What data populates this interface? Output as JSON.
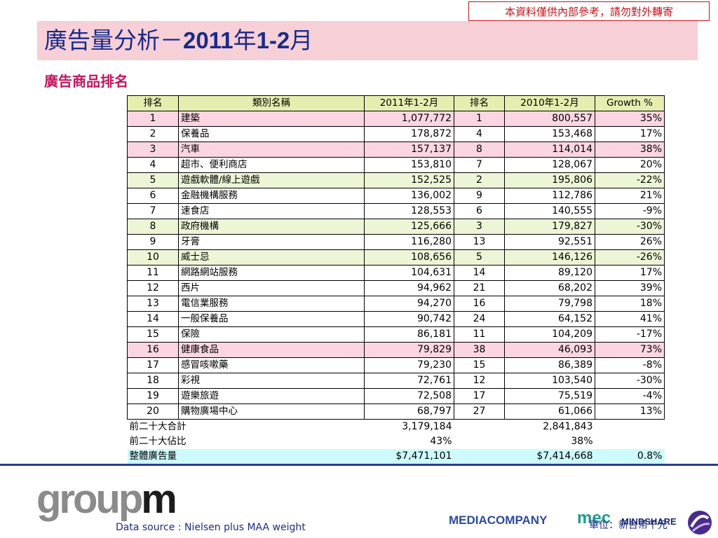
{
  "notice": "本資料僅供內部參考，請勿對外轉寄",
  "title": {
    "prefix": "廣告量分析－",
    "year": "2011",
    "nian": "年",
    "range": "1-2",
    "yue": "月"
  },
  "subtitle": "廣告商品排名",
  "table": {
    "headers": [
      "排名",
      "類別名稱",
      "2011年1-2月",
      "排名",
      "2010年1-2月",
      "Growth %"
    ],
    "rows": [
      {
        "rank": "1",
        "name": "建築",
        "v2011": "1,077,772",
        "rank2010": "1",
        "v2010": "800,557",
        "growth": "35%",
        "hl": "pink"
      },
      {
        "rank": "2",
        "name": "保養品",
        "v2011": "178,872",
        "rank2010": "4",
        "v2010": "153,468",
        "growth": "17%",
        "hl": "white"
      },
      {
        "rank": "3",
        "name": "汽車",
        "v2011": "157,137",
        "rank2010": "8",
        "v2010": "114,014",
        "growth": "38%",
        "hl": "pink"
      },
      {
        "rank": "4",
        "name": "超市、便利商店",
        "v2011": "153,810",
        "rank2010": "7",
        "v2010": "128,067",
        "growth": "20%",
        "hl": "white"
      },
      {
        "rank": "5",
        "name": "遊戲軟體/線上遊戲",
        "v2011": "152,525",
        "rank2010": "2",
        "v2010": "195,806",
        "growth": "-22%",
        "hl": "green"
      },
      {
        "rank": "6",
        "name": "金融機構服務",
        "v2011": "136,002",
        "rank2010": "9",
        "v2010": "112,786",
        "growth": "21%",
        "hl": "white"
      },
      {
        "rank": "7",
        "name": "速食店",
        "v2011": "128,553",
        "rank2010": "6",
        "v2010": "140,555",
        "growth": "-9%",
        "hl": "white"
      },
      {
        "rank": "8",
        "name": "政府機構",
        "v2011": "125,666",
        "rank2010": "3",
        "v2010": "179,827",
        "growth": "-30%",
        "hl": "green"
      },
      {
        "rank": "9",
        "name": "牙膏",
        "v2011": "116,280",
        "rank2010": "13",
        "v2010": "92,551",
        "growth": "26%",
        "hl": "white"
      },
      {
        "rank": "10",
        "name": "威士忌",
        "v2011": "108,656",
        "rank2010": "5",
        "v2010": "146,126",
        "growth": "-26%",
        "hl": "green"
      },
      {
        "rank": "11",
        "name": "網路網站服務",
        "v2011": "104,631",
        "rank2010": "14",
        "v2010": "89,120",
        "growth": "17%",
        "hl": "white"
      },
      {
        "rank": "12",
        "name": "西片",
        "v2011": "94,962",
        "rank2010": "21",
        "v2010": "68,202",
        "growth": "39%",
        "hl": "white"
      },
      {
        "rank": "13",
        "name": "電信業服務",
        "v2011": "94,270",
        "rank2010": "16",
        "v2010": "79,798",
        "growth": "18%",
        "hl": "white"
      },
      {
        "rank": "14",
        "name": "一般保養品",
        "v2011": "90,742",
        "rank2010": "24",
        "v2010": "64,152",
        "growth": "41%",
        "hl": "white"
      },
      {
        "rank": "15",
        "name": "保險",
        "v2011": "86,181",
        "rank2010": "11",
        "v2010": "104,209",
        "growth": "-17%",
        "hl": "white"
      },
      {
        "rank": "16",
        "name": "健康食品",
        "v2011": "79,829",
        "rank2010": "38",
        "v2010": "46,093",
        "growth": "73%",
        "hl": "pink"
      },
      {
        "rank": "17",
        "name": "感冒咳嗽藥",
        "v2011": "79,230",
        "rank2010": "15",
        "v2010": "86,389",
        "growth": "-8%",
        "hl": "white"
      },
      {
        "rank": "18",
        "name": "彩視",
        "v2011": "72,761",
        "rank2010": "12",
        "v2010": "103,540",
        "growth": "-30%",
        "hl": "white"
      },
      {
        "rank": "19",
        "name": "遊樂旅遊",
        "v2011": "72,508",
        "rank2010": "17",
        "v2010": "75,519",
        "growth": "-4%",
        "hl": "white"
      },
      {
        "rank": "20",
        "name": "購物廣場中心",
        "v2011": "68,797",
        "rank2010": "27",
        "v2010": "61,066",
        "growth": "13%",
        "hl": "white"
      }
    ],
    "summary": [
      {
        "label": "前二十大合計",
        "v2011": "3,179,184",
        "v2010": "2,841,843",
        "growth": "",
        "hl": "none"
      },
      {
        "label": "前二十大佔比",
        "v2011": "43%",
        "v2010": "38%",
        "growth": "",
        "hl": "none"
      },
      {
        "label": "整體廣告量",
        "v2011": "$7,471,101",
        "v2010": "$7,414,668",
        "growth": "0.8%",
        "hl": "cyan"
      }
    ]
  },
  "footer": {
    "logo_part1": "group",
    "logo_part2": "m",
    "source": "Data source : Nielsen plus MAA weight",
    "mediacompany": "MEDIACOMPANY",
    "mec": "mec",
    "unit": "單位：新台幣千元",
    "mindshare": "MINDSHARE"
  },
  "colors": {
    "title_bg": "#f6d0d6",
    "title_text": "#1b2a8a",
    "subtitle_text": "#c0165e",
    "header_bg": "#e6eeaf",
    "pink_row": "#fbd6e2",
    "green_row": "#ecf6d6",
    "cyan_row": "#cdfafc",
    "notice_border": "#c0161b"
  }
}
